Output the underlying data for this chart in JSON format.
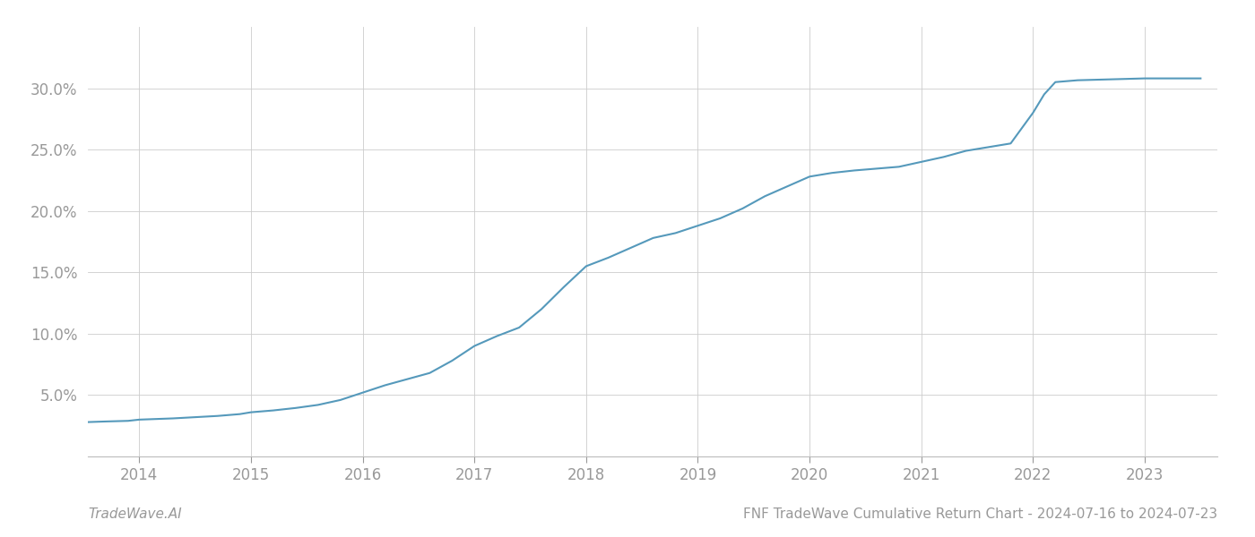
{
  "title": "FNF TradeWave Cumulative Return Chart - 2024-07-16 to 2024-07-23",
  "watermark": "TradeWave.AI",
  "line_color": "#5599bb",
  "background_color": "#ffffff",
  "grid_color": "#cccccc",
  "x_values": [
    2013.54,
    2013.7,
    2013.9,
    2014.0,
    2014.15,
    2014.3,
    2014.5,
    2014.7,
    2014.9,
    2015.0,
    2015.2,
    2015.4,
    2015.6,
    2015.8,
    2016.0,
    2016.2,
    2016.4,
    2016.6,
    2016.8,
    2017.0,
    2017.2,
    2017.4,
    2017.6,
    2017.8,
    2018.0,
    2018.2,
    2018.4,
    2018.6,
    2018.8,
    2019.0,
    2019.2,
    2019.4,
    2019.6,
    2019.8,
    2020.0,
    2020.2,
    2020.4,
    2020.6,
    2020.8,
    2021.0,
    2021.2,
    2021.4,
    2021.6,
    2021.8,
    2022.0,
    2022.1,
    2022.2,
    2022.4,
    2022.6,
    2022.8,
    2023.0,
    2023.2,
    2023.5
  ],
  "y_values": [
    2.8,
    2.85,
    2.9,
    3.0,
    3.05,
    3.1,
    3.2,
    3.3,
    3.45,
    3.6,
    3.75,
    3.95,
    4.2,
    4.6,
    5.2,
    5.8,
    6.3,
    6.8,
    7.8,
    9.0,
    9.8,
    10.5,
    12.0,
    13.8,
    15.5,
    16.2,
    17.0,
    17.8,
    18.2,
    18.8,
    19.4,
    20.2,
    21.2,
    22.0,
    22.8,
    23.1,
    23.3,
    23.45,
    23.6,
    24.0,
    24.4,
    24.9,
    25.2,
    25.5,
    28.0,
    29.5,
    30.5,
    30.65,
    30.7,
    30.75,
    30.8,
    30.8,
    30.8
  ],
  "xlim": [
    2013.54,
    2023.65
  ],
  "ylim": [
    0,
    35
  ],
  "yticks": [
    5.0,
    10.0,
    15.0,
    20.0,
    25.0,
    30.0
  ],
  "xticks": [
    2014,
    2015,
    2016,
    2017,
    2018,
    2019,
    2020,
    2021,
    2022,
    2023
  ],
  "tick_label_color": "#999999",
  "line_width": 1.5,
  "title_fontsize": 11,
  "watermark_fontsize": 11,
  "tick_fontsize": 12
}
